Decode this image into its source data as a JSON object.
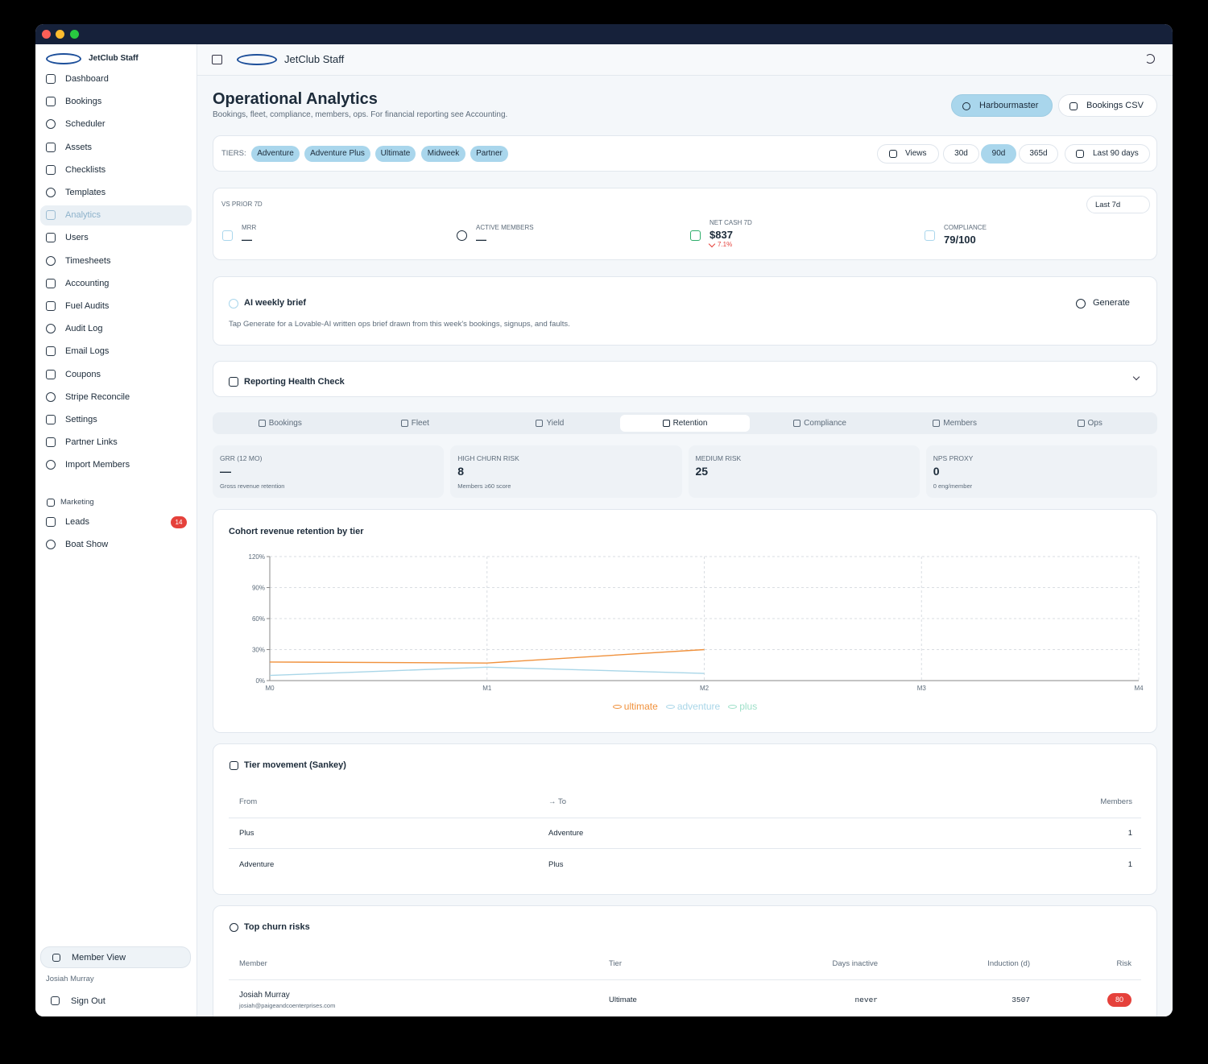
{
  "sidebar": {
    "brand": "JetClub Staff",
    "nav": [
      "Dashboard",
      "Bookings",
      "Scheduler",
      "Assets",
      "Checklists",
      "Templates",
      "Analytics",
      "Users",
      "Timesheets",
      "Accounting",
      "Fuel Audits",
      "Audit Log",
      "Email Logs",
      "Coupons",
      "Stripe Reconcile",
      "Settings",
      "Partner Links",
      "Import Members"
    ],
    "section": "Marketing",
    "marketing": [
      "Leads",
      "Boat Show"
    ],
    "leads_badge": 14,
    "member_view": "Member View",
    "user": "Josiah Murray",
    "sign_out": "Sign Out"
  },
  "topbar": {
    "brand": "JetClub Staff"
  },
  "header": {
    "title": "Operational Analytics",
    "subtitle": "Bookings, fleet, compliance, members, ops. For financial reporting see Accounting.",
    "buttons": [
      "Harbourmaster",
      "Bookings CSV"
    ]
  },
  "filters": {
    "label": "TIERS:",
    "tiers": [
      "Adventure",
      "Adventure Plus",
      "Ultimate",
      "Midweek",
      "Partner"
    ],
    "views": "Views",
    "ranges": [
      "30d",
      "90d",
      "365d"
    ],
    "date": "Last 90 days"
  },
  "kpis": {
    "label": "VS PRIOR 7D",
    "period": "Last 7d",
    "items": [
      {
        "label": "MRR",
        "value": "—"
      },
      {
        "label": "ACTIVE MEMBERS",
        "value": "—"
      },
      {
        "label": "NET CASH 7D",
        "value": "$837",
        "change": "7.1%"
      },
      {
        "label": "COMPLIANCE",
        "value": "79/100"
      }
    ]
  },
  "brief": {
    "title": "AI weekly brief",
    "action": "Generate",
    "text": "Tap Generate for a Lovable-AI written ops brief drawn from this week's bookings, signups, and faults."
  },
  "health": {
    "title": "Reporting Health Check"
  },
  "tabs": [
    "Bookings",
    "Fleet",
    "Yield",
    "Retention",
    "Compliance",
    "Members",
    "Ops"
  ],
  "stats": [
    {
      "label": "GRR (12 MO)",
      "value": "—",
      "note": "Gross revenue retention"
    },
    {
      "label": "HIGH CHURN RISK",
      "value": 8,
      "note": "Members ≥60 score"
    },
    {
      "label": "MEDIUM RISK",
      "value": 25
    },
    {
      "label": "NPS PROXY",
      "value": 0,
      "note": "0 eng/member"
    }
  ],
  "chart_data": {
    "type": "line",
    "title": "Cohort revenue retention by tier",
    "categories": [
      "M0",
      "M1",
      "M2",
      "M3",
      "M4"
    ],
    "series": [
      {
        "name": "ultimate",
        "color": "#f0913c",
        "values": [
          18,
          17,
          30,
          null,
          null
        ]
      },
      {
        "name": "adventure",
        "color": "#a9d6e8",
        "values": [
          5,
          13,
          7,
          null,
          null
        ]
      },
      {
        "name": "plus",
        "color": "#9fe0c9",
        "values": [
          null,
          null,
          null,
          null,
          null
        ]
      }
    ],
    "ylim": [
      0,
      120
    ],
    "yticks": [
      {
        "value": 0,
        "label": "0%"
      },
      {
        "value": 30,
        "label": "30%"
      },
      {
        "value": 60,
        "label": "60%"
      },
      {
        "value": 90,
        "label": "90%"
      },
      {
        "value": 120,
        "label": "120%"
      }
    ],
    "grid": true
  },
  "sankey": {
    "title": "Tier movement (Sankey)",
    "columns": [
      "From",
      "→ To",
      "Members"
    ],
    "rows": [
      [
        "Plus",
        "Adventure",
        1
      ],
      [
        "Adventure",
        "Plus",
        1
      ]
    ]
  },
  "churn": {
    "title": "Top churn risks",
    "columns": [
      "Member",
      "Tier",
      "Days inactive",
      "Induction (d)",
      "Risk"
    ],
    "rows": [
      {
        "name": "Josiah Murray",
        "email": "josiah@paigeandcoenterprises.com",
        "tier": "Ultimate",
        "days_inactive": "never",
        "induction": 3507,
        "risk": 80
      }
    ]
  }
}
